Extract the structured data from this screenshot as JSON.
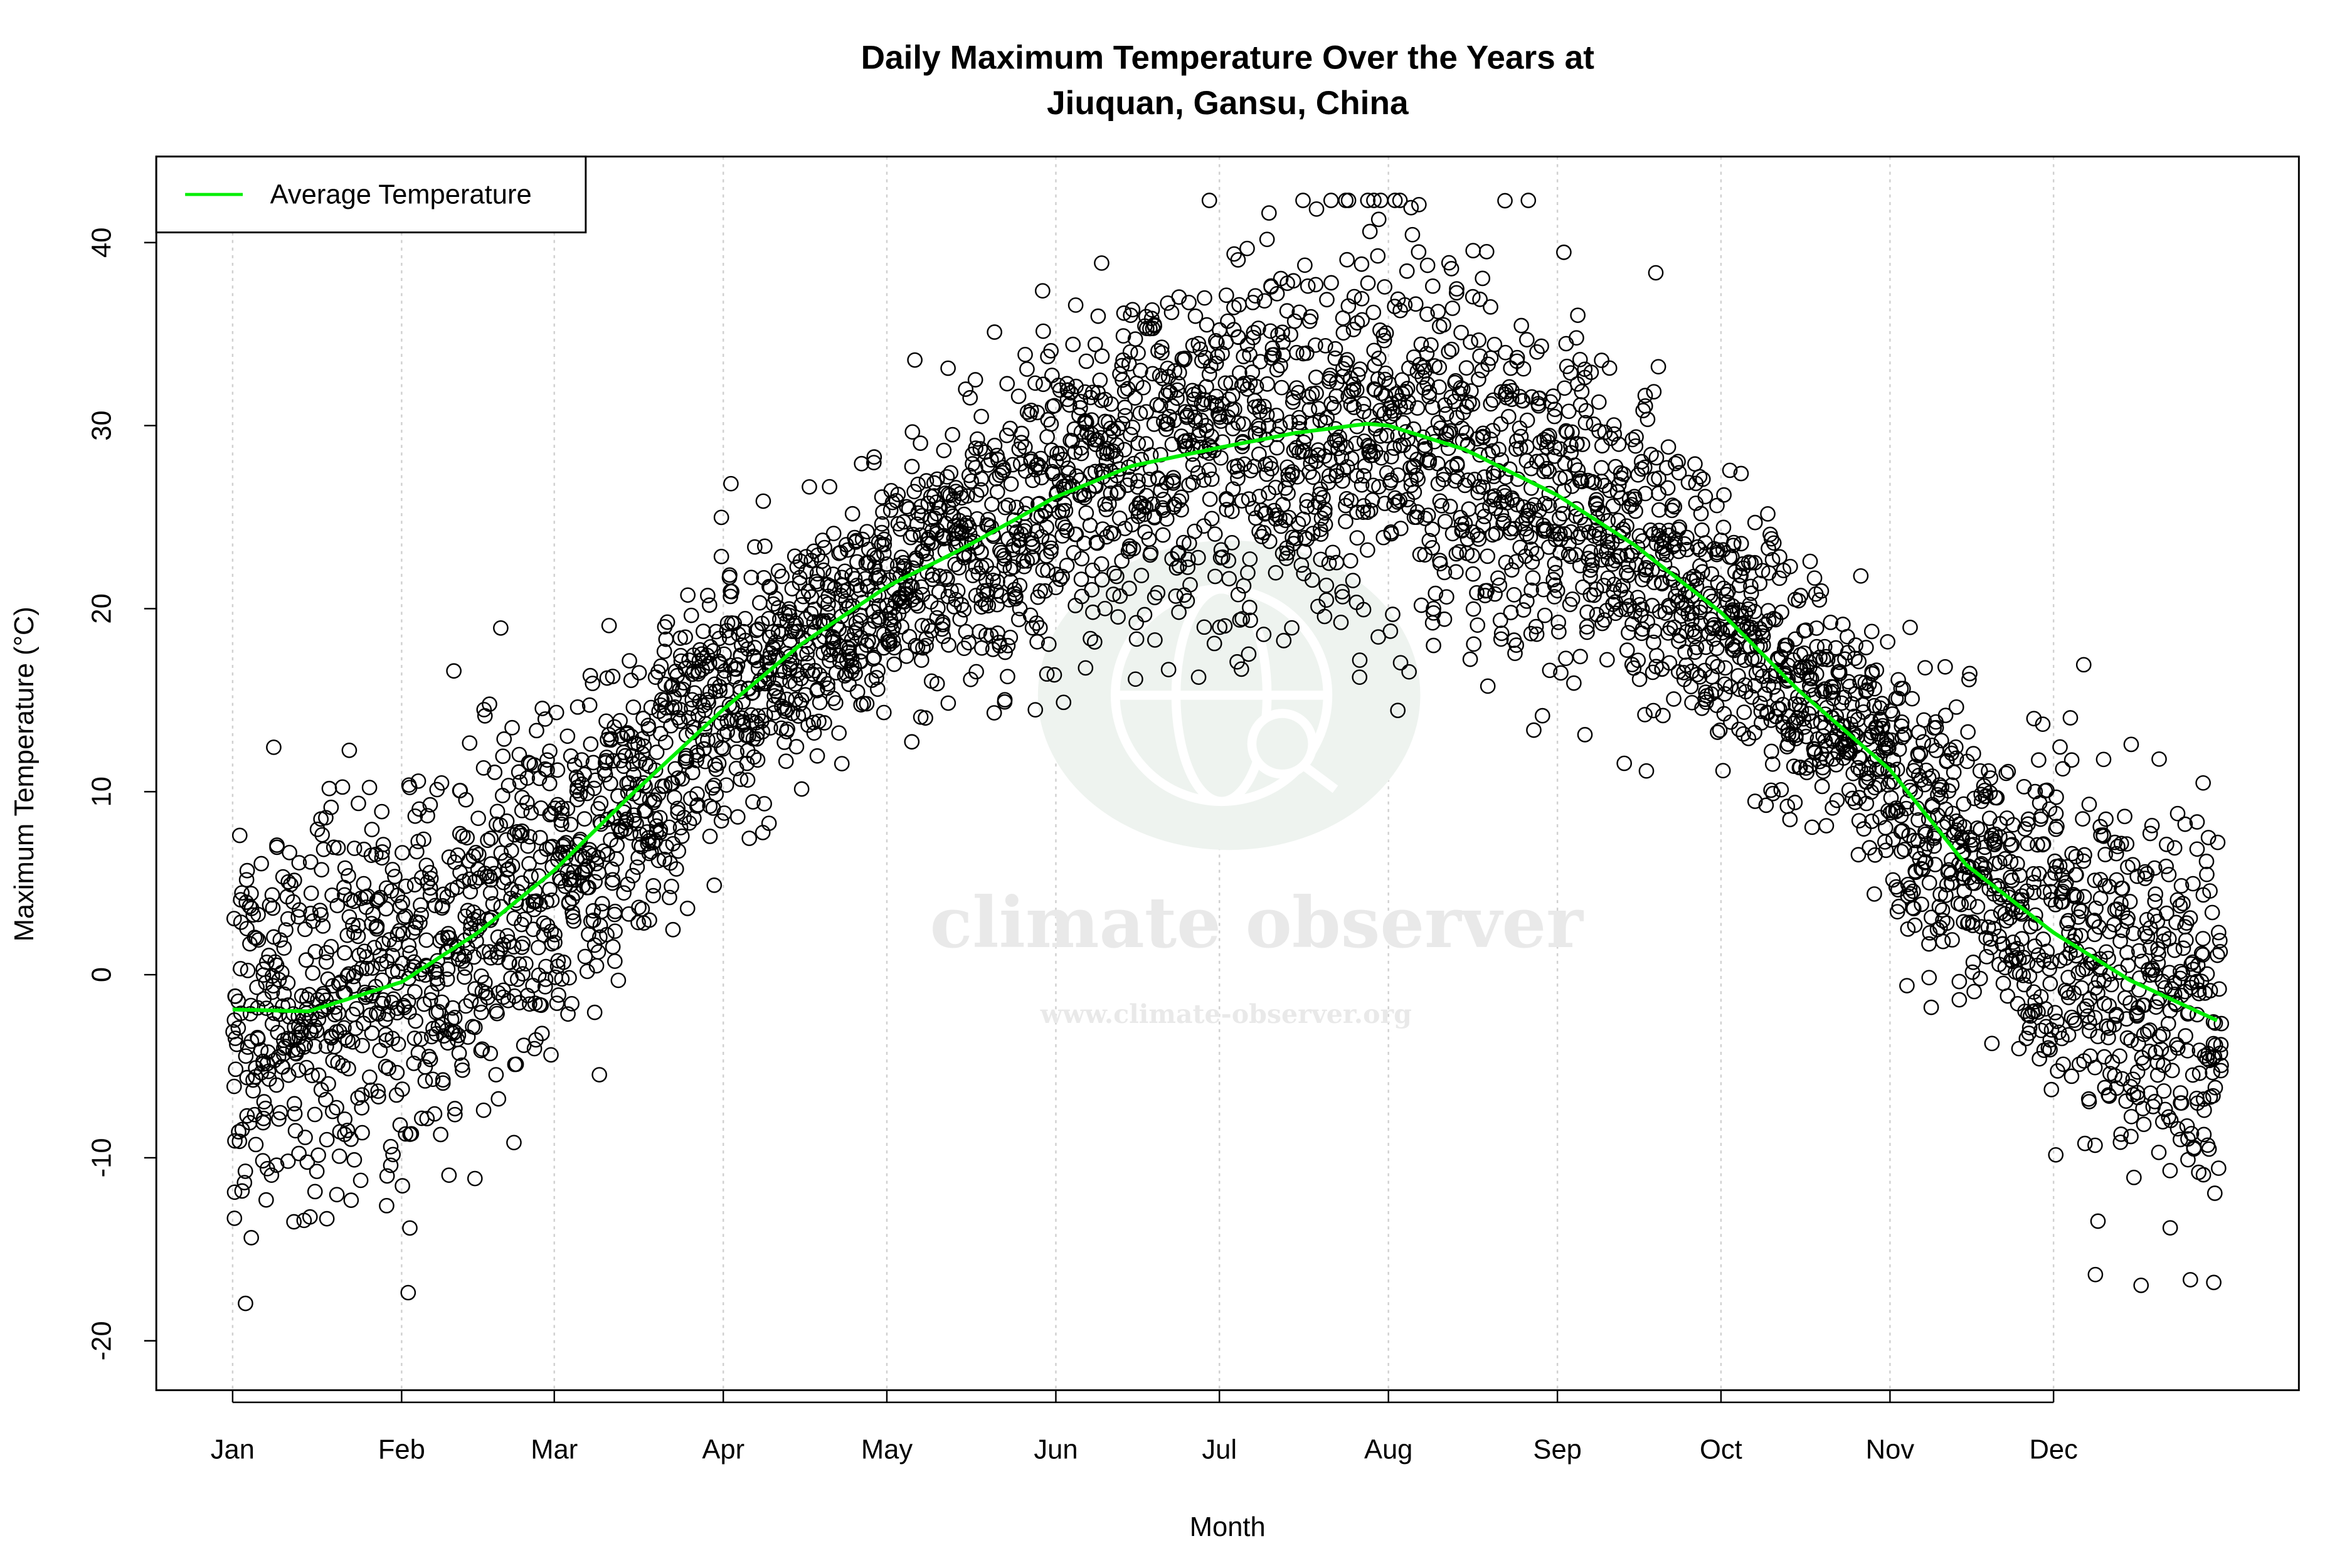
{
  "chart_data": {
    "type": "scatter",
    "title_line1": "Daily Maximum Temperature Over the Years at",
    "title_line2": "Jiuquan, Gansu, China",
    "xlabel": "Month",
    "ylabel": "Maximum Temperature (°C)",
    "xlim_day_of_year": [
      -13,
      380
    ],
    "ylim": [
      -22.7,
      44.7
    ],
    "grid": "vertical dotted at month ticks",
    "x_ticks": [
      {
        "label": "Jan",
        "day": 1
      },
      {
        "label": "Feb",
        "day": 32
      },
      {
        "label": "Mar",
        "day": 60
      },
      {
        "label": "Apr",
        "day": 91
      },
      {
        "label": "May",
        "day": 121
      },
      {
        "label": "Jun",
        "day": 152
      },
      {
        "label": "Jul",
        "day": 182
      },
      {
        "label": "Aug",
        "day": 213
      },
      {
        "label": "Sep",
        "day": 244
      },
      {
        "label": "Oct",
        "day": 274
      },
      {
        "label": "Nov",
        "day": 305
      },
      {
        "label": "Dec",
        "day": 335
      }
    ],
    "y_ticks": [
      -20,
      -10,
      0,
      10,
      20,
      30,
      40
    ],
    "legend": {
      "position": "top-left",
      "entries": [
        {
          "label": "Average Temperature",
          "color": "#00ee00"
        }
      ]
    },
    "series": [
      {
        "name": "Average Temperature",
        "type": "line",
        "color": "#00ee00",
        "day": [
          1,
          15,
          32,
          46,
          60,
          74,
          91,
          105,
          121,
          135,
          152,
          166,
          182,
          196,
          209,
          213,
          227,
          244,
          258,
          274,
          288,
          305,
          319,
          335,
          349,
          365
        ],
        "temp": [
          -1.9,
          -2.0,
          -0.4,
          2.3,
          5.7,
          9.8,
          14.5,
          18.0,
          21.2,
          23.3,
          26.1,
          27.8,
          28.8,
          29.6,
          30.1,
          30.0,
          28.7,
          26.2,
          23.5,
          19.8,
          15.6,
          11.2,
          6.0,
          2.3,
          -0.3,
          -2.5
        ]
      },
      {
        "type": "scatter",
        "marker": "open-circle",
        "color": "#000000",
        "description_range": "daily maxima roughly -20 to 42 °C"
      }
    ],
    "watermark": {
      "brand": "climate observer",
      "url": "www.climate-observer.org",
      "color": "#eef3ef"
    }
  }
}
